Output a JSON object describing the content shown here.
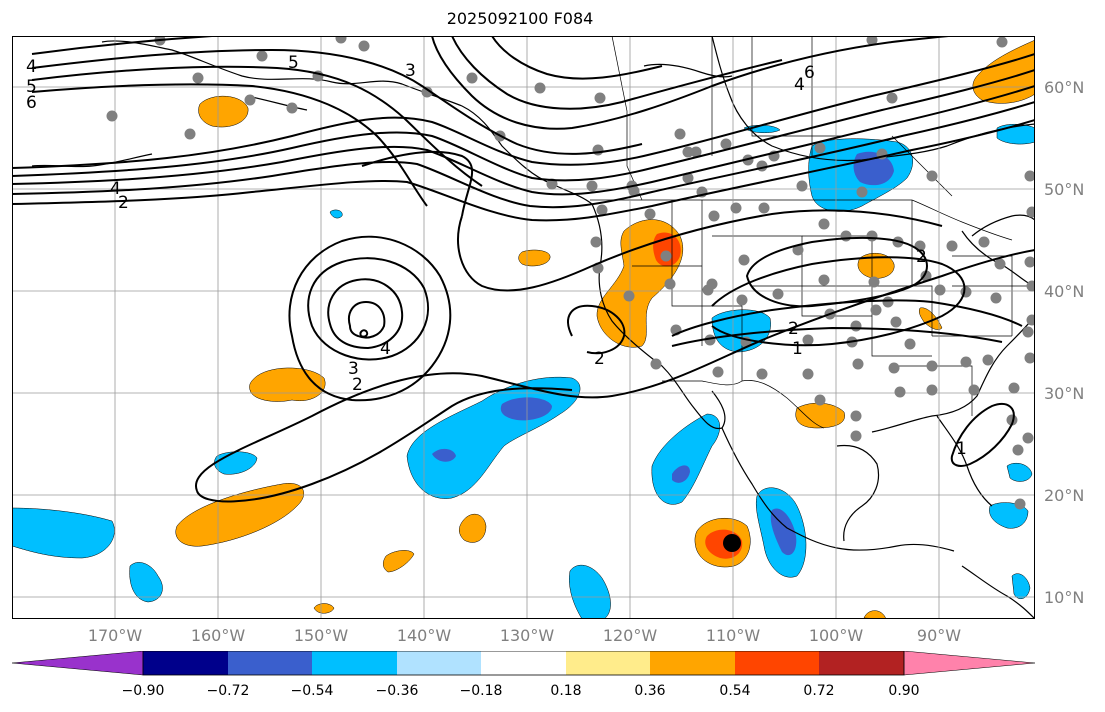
{
  "title": "2025092100 F084",
  "lat_labels": [
    "60°N",
    "50°N",
    "40°N",
    "30°N",
    "20°N",
    "10°N"
  ],
  "lon_labels": [
    "170°W",
    "160°W",
    "150°W",
    "140°W",
    "130°W",
    "120°W",
    "110°W",
    "100°W",
    "90°W"
  ],
  "colorbar": {
    "ticks": [
      "−0.90",
      "−0.72",
      "−0.54",
      "−0.36",
      "−0.18",
      "0.18",
      "0.36",
      "0.54",
      "0.72",
      "0.90"
    ],
    "colors": [
      "#9932cc",
      "#00008b",
      "#3a5fcd",
      "#00bfff",
      "#b0e2ff",
      "#ffffff",
      "#ffec8b",
      "#ffa500",
      "#ff4500",
      "#b22222",
      "#ff82ab"
    ]
  },
  "contour_labels": {
    "c4_left": "4",
    "c5_left": "5",
    "c6_left": "6",
    "c5_alaska": "5",
    "c3_gulf": "3",
    "c6_canada": "6",
    "c4_canada": "4",
    "c4_mid": "4",
    "c2_mid": "2",
    "c3_low": "3",
    "c2_low": "2",
    "c4_low": "4",
    "c2_socal": "2",
    "c2_plains": "2",
    "c1_plains": "1",
    "c2_east": "2",
    "c1_gulf": "1"
  }
}
